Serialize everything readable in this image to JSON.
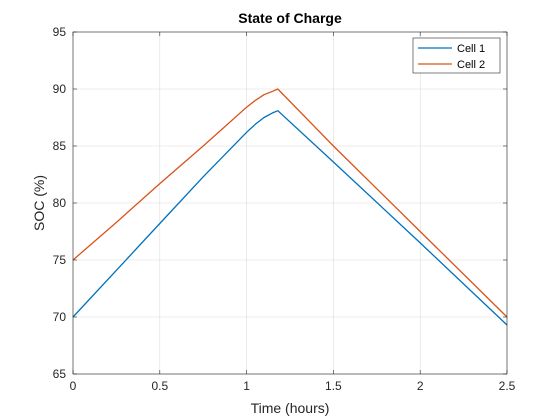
{
  "chart_data": {
    "type": "line",
    "title": "State of Charge",
    "xlabel": "Time (hours)",
    "ylabel": "SOC (%)",
    "xlim": [
      0,
      2.5
    ],
    "ylim": [
      65,
      95
    ],
    "xticks": [
      0,
      0.5,
      1,
      1.5,
      2,
      2.5
    ],
    "xtick_labels": [
      "0",
      "0.5",
      "1",
      "1.5",
      "2",
      "2.5"
    ],
    "yticks": [
      65,
      70,
      75,
      80,
      85,
      90,
      95
    ],
    "ytick_labels": [
      "65",
      "70",
      "75",
      "80",
      "85",
      "90",
      "95"
    ],
    "grid": true,
    "legend_position": "top-right",
    "series": [
      {
        "name": "Cell 1",
        "color": "#0072BD",
        "x": [
          0,
          0.25,
          0.5,
          0.75,
          1.0,
          1.05,
          1.1,
          1.15,
          1.18,
          1.5,
          2.0,
          2.5
        ],
        "y": [
          70.0,
          74.1,
          78.2,
          82.3,
          86.2,
          86.9,
          87.5,
          87.9,
          88.1,
          83.6,
          76.5,
          69.3
        ]
      },
      {
        "name": "Cell 2",
        "color": "#D95319",
        "x": [
          0,
          0.25,
          0.5,
          0.75,
          1.0,
          1.05,
          1.1,
          1.15,
          1.18,
          1.5,
          2.0,
          2.5
        ],
        "y": [
          75.0,
          78.3,
          81.7,
          85.0,
          88.4,
          89.0,
          89.5,
          89.8,
          90.0,
          85.0,
          77.5,
          70.0
        ]
      }
    ]
  }
}
